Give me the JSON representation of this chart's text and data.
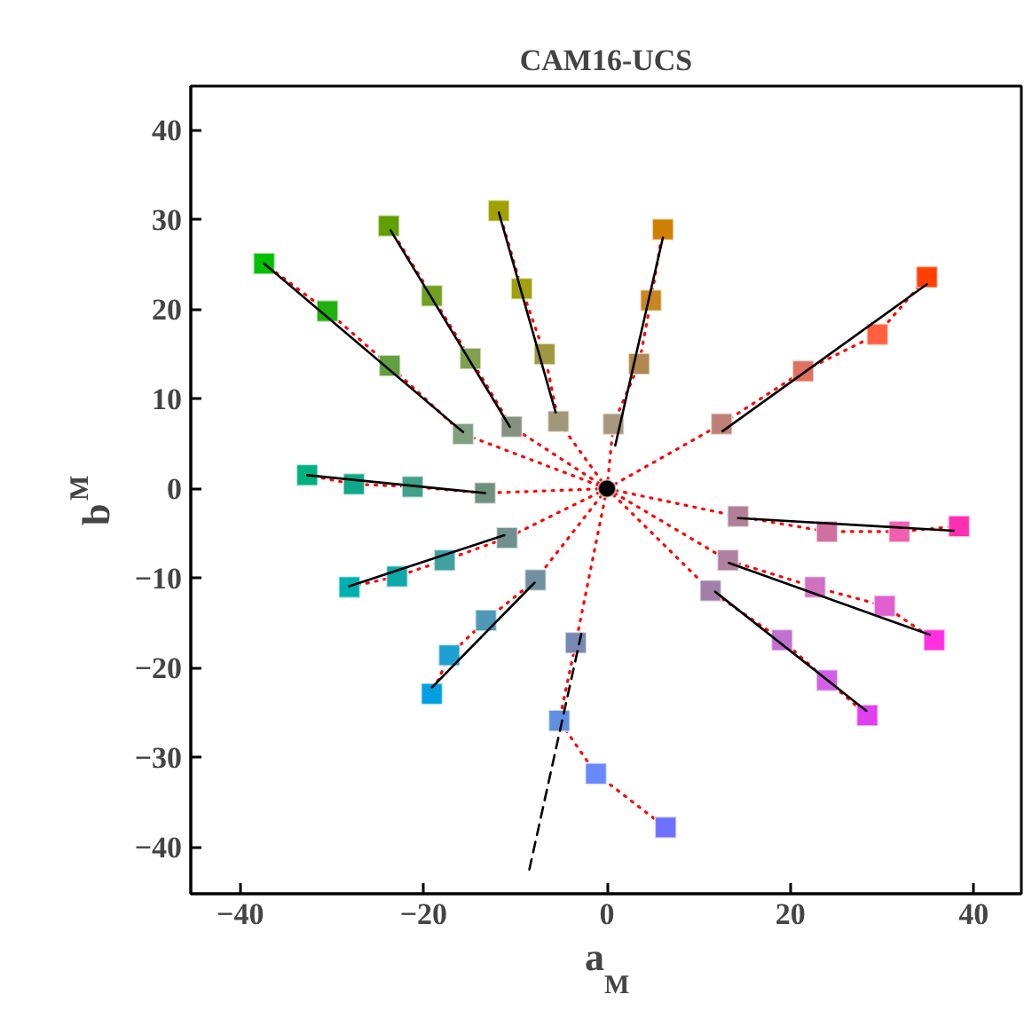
{
  "chart_data": {
    "type": "scatter",
    "title": "CAM16-UCS",
    "xlabel": "a$_{M}$",
    "ylabel": "b$_{M}$",
    "xlim": [
      -45.4,
      45.2
    ],
    "ylim": [
      -45.2,
      44.9
    ],
    "xticks": [
      -40,
      -20,
      0,
      20,
      40
    ],
    "yticks": [
      -40,
      -30,
      -20,
      -10,
      0,
      10,
      20,
      30,
      40
    ],
    "grid": false,
    "marker": "square",
    "series": [
      {
        "type": "line",
        "line_style": "dotted",
        "marker": "none",
        "color": "#ff0000",
        "x": [
          0,
          -15.7,
          -23.7,
          -30.5,
          -37.4
        ],
        "values": [
          0,
          6.1,
          13.7,
          19.8,
          25.1
        ]
      },
      {
        "type": "line",
        "line_style": "dotted",
        "marker": "none",
        "color": "#ff0000",
        "x": [
          0,
          -10.4,
          -14.9,
          -19.1,
          -23.8
        ],
        "values": [
          0,
          6.9,
          14.5,
          21.5,
          29.3
        ]
      },
      {
        "type": "line",
        "line_style": "dotted",
        "marker": "none",
        "color": "#ff0000",
        "x": [
          0,
          -5.3,
          -6.8,
          -9.3,
          -11.8
        ],
        "values": [
          0,
          7.5,
          15.0,
          22.3,
          31.0
        ]
      },
      {
        "type": "line",
        "line_style": "dotted",
        "marker": "none",
        "color": "#ff0000",
        "x": [
          0,
          0.7,
          3.5,
          4.8,
          6.1
        ],
        "values": [
          0,
          7.2,
          13.9,
          21.0,
          28.9
        ]
      },
      {
        "type": "line",
        "line_style": "dotted",
        "marker": "none",
        "color": "#ff0000",
        "x": [
          0,
          12.5,
          21.4,
          29.5,
          34.9
        ],
        "values": [
          0,
          7.2,
          13.1,
          17.2,
          23.6
        ]
      },
      {
        "type": "line",
        "line_style": "dotted",
        "marker": "none",
        "color": "#ff0000",
        "x": [
          0,
          14.3,
          24.0,
          31.9,
          38.4
        ],
        "values": [
          0,
          -3.1,
          -4.8,
          -4.8,
          -4.2
        ]
      },
      {
        "type": "line",
        "line_style": "dotted",
        "marker": "none",
        "color": "#ff0000",
        "x": [
          0,
          13.2,
          22.7,
          30.3,
          35.7
        ],
        "values": [
          0,
          -8.0,
          -11.0,
          -13.1,
          -16.9
        ]
      },
      {
        "type": "line",
        "line_style": "dotted",
        "marker": "none",
        "color": "#ff0000",
        "x": [
          0,
          11.3,
          19.1,
          24.0,
          28.4
        ],
        "values": [
          0,
          -11.4,
          -16.9,
          -21.4,
          -25.3
        ]
      },
      {
        "type": "line",
        "line_style": "dotted",
        "marker": "none",
        "color": "#ff0000",
        "x": [
          0,
          -3.4,
          -5.2,
          -1.2,
          6.4
        ],
        "values": [
          0,
          -17.2,
          -25.9,
          -31.8,
          -37.8
        ]
      },
      {
        "type": "line",
        "line_style": "dotted",
        "marker": "none",
        "color": "#ff0000",
        "x": [
          0,
          -7.8,
          -13.2,
          -17.2,
          -19.1
        ],
        "values": [
          0,
          -10.2,
          -14.7,
          -18.6,
          -22.9
        ]
      },
      {
        "type": "line",
        "line_style": "dotted",
        "marker": "none",
        "color": "#ff0000",
        "x": [
          0,
          -10.9,
          -17.7,
          -22.9,
          -28.1
        ],
        "values": [
          0,
          -5.5,
          -8.0,
          -9.8,
          -11.0
        ]
      },
      {
        "type": "line",
        "line_style": "dotted",
        "marker": "none",
        "color": "#ff0000",
        "x": [
          0,
          -13.3,
          -21.2,
          -27.6,
          -32.7
        ],
        "values": [
          0,
          -0.5,
          0.2,
          0.5,
          1.5
        ]
      },
      {
        "x": [
          -37.4,
          -30.5,
          -23.7,
          -15.7
        ],
        "values": [
          25.1,
          19.8,
          13.7,
          6.1
        ],
        "colors": [
          "#00c000",
          "#20b010",
          "#60a040",
          "#80a080"
        ]
      },
      {
        "x": [
          -23.8,
          -19.1,
          -14.9,
          -10.4
        ],
        "values": [
          29.3,
          21.5,
          14.5,
          6.9
        ],
        "colors": [
          "#60a000",
          "#70a020",
          "#80a050",
          "#889080"
        ]
      },
      {
        "x": [
          -11.8,
          -9.3,
          -6.8,
          -5.3
        ],
        "values": [
          31.0,
          22.3,
          15.0,
          7.5
        ],
        "colors": [
          "#a0a000",
          "#a0a010",
          "#a09840",
          "#a09878"
        ]
      },
      {
        "x": [
          6.1,
          4.8,
          3.5,
          0.7
        ],
        "values": [
          28.9,
          21.0,
          13.9,
          7.2
        ],
        "colors": [
          "#d08000",
          "#c88820",
          "#b08850",
          "#a89880"
        ]
      },
      {
        "x": [
          34.9,
          29.5,
          21.4,
          12.5
        ],
        "values": [
          23.6,
          17.2,
          13.1,
          7.2
        ],
        "colors": [
          "#ff4000",
          "#ff6040",
          "#e07060",
          "#c08078"
        ]
      },
      {
        "x": [
          14.3,
          24.0,
          31.9,
          38.4
        ],
        "values": [
          -3.1,
          -4.8,
          -4.8,
          -4.2
        ],
        "colors": [
          "#b08098",
          "#d070a0",
          "#f060b0",
          "#ff30b0"
        ]
      },
      {
        "x": [
          13.2,
          22.7,
          30.3,
          35.7
        ],
        "values": [
          -8.0,
          -11.0,
          -13.1,
          -16.9
        ],
        "colors": [
          "#b080a0",
          "#d070c0",
          "#e060d0",
          "#ff30e0"
        ]
      },
      {
        "x": [
          11.3,
          19.1,
          24.0,
          28.4
        ],
        "values": [
          -11.4,
          -16.9,
          -21.4,
          -25.3
        ],
        "colors": [
          "#a080a8",
          "#c070d0",
          "#d060e8",
          "#e040f0"
        ]
      },
      {
        "x": [
          -3.4,
          -5.2,
          -1.2,
          6.4
        ],
        "values": [
          -17.2,
          -25.9,
          -31.8,
          -37.8
        ],
        "colors": [
          "#7888b0",
          "#6090e0",
          "#6888ff",
          "#7070ff"
        ]
      },
      {
        "x": [
          -7.8,
          -13.2,
          -17.2,
          -19.1
        ],
        "values": [
          -10.2,
          -14.7,
          -18.6,
          -22.9
        ],
        "colors": [
          "#7090a0",
          "#5098b8",
          "#20a0d0",
          "#00a0e0"
        ]
      },
      {
        "x": [
          -10.9,
          -17.7,
          -22.9,
          -28.1
        ],
        "values": [
          -5.5,
          -8.0,
          -9.8,
          -11.0
        ],
        "colors": [
          "#709090",
          "#40a0a0",
          "#10a8a8",
          "#00b0b0"
        ]
      },
      {
        "x": [
          -32.7,
          -27.6,
          -21.2,
          -13.3
        ],
        "values": [
          1.5,
          0.5,
          0.2,
          -0.5
        ],
        "colors": [
          "#00b080",
          "#10a888",
          "#40a088",
          "#709080"
        ]
      },
      {
        "type": "line",
        "line_style": "solid",
        "marker": "none",
        "color": "#000000",
        "x": [
          -37.4,
          -15.7
        ],
        "values": [
          25.1,
          6.3
        ]
      },
      {
        "type": "line",
        "line_style": "solid",
        "marker": "none",
        "color": "#000000",
        "x": [
          -23.6,
          -10.6
        ],
        "values": [
          28.8,
          6.9
        ]
      },
      {
        "type": "line",
        "line_style": "solid",
        "marker": "none",
        "color": "#000000",
        "x": [
          -11.8,
          -5.6
        ],
        "values": [
          30.8,
          8.5
        ]
      },
      {
        "type": "line",
        "line_style": "solid",
        "marker": "none",
        "color": "#000000",
        "x": [
          6.1,
          0.9
        ],
        "values": [
          28.0,
          4.8
        ]
      },
      {
        "type": "line",
        "line_style": "solid",
        "marker": "none",
        "color": "#000000",
        "x": [
          12.6,
          34.9
        ],
        "values": [
          6.4,
          22.8
        ]
      },
      {
        "type": "line",
        "line_style": "solid",
        "marker": "none",
        "color": "#000000",
        "x": [
          14.3,
          37.8
        ],
        "values": [
          -3.3,
          -4.7
        ]
      },
      {
        "type": "line",
        "line_style": "solid",
        "marker": "none",
        "color": "#000000",
        "x": [
          13.3,
          35.2
        ],
        "values": [
          -8.3,
          -16.3
        ]
      },
      {
        "type": "line",
        "line_style": "solid",
        "marker": "none",
        "color": "#000000",
        "x": [
          11.8,
          28.3
        ],
        "values": [
          -11.5,
          -24.8
        ]
      },
      {
        "type": "line",
        "line_style": "dashed",
        "marker": "none",
        "color": "#000000",
        "x": [
          -2.8,
          -8.6
        ],
        "values": [
          -16.2,
          -43.1
        ]
      },
      {
        "type": "line",
        "line_style": "solid",
        "marker": "none",
        "color": "#000000",
        "x": [
          -7.9,
          -19.1
        ],
        "values": [
          -10.5,
          -22.2
        ]
      },
      {
        "type": "line",
        "line_style": "solid",
        "marker": "none",
        "color": "#000000",
        "x": [
          -11.2,
          -28.1
        ],
        "values": [
          -5.2,
          -10.9
        ]
      },
      {
        "type": "line",
        "line_style": "solid",
        "marker": "none",
        "color": "#000000",
        "x": [
          -32.7,
          -13.3
        ],
        "values": [
          1.5,
          -0.5
        ]
      },
      {
        "marker": "circle",
        "color": "#000000",
        "x": [
          0
        ],
        "values": [
          0
        ]
      }
    ]
  }
}
